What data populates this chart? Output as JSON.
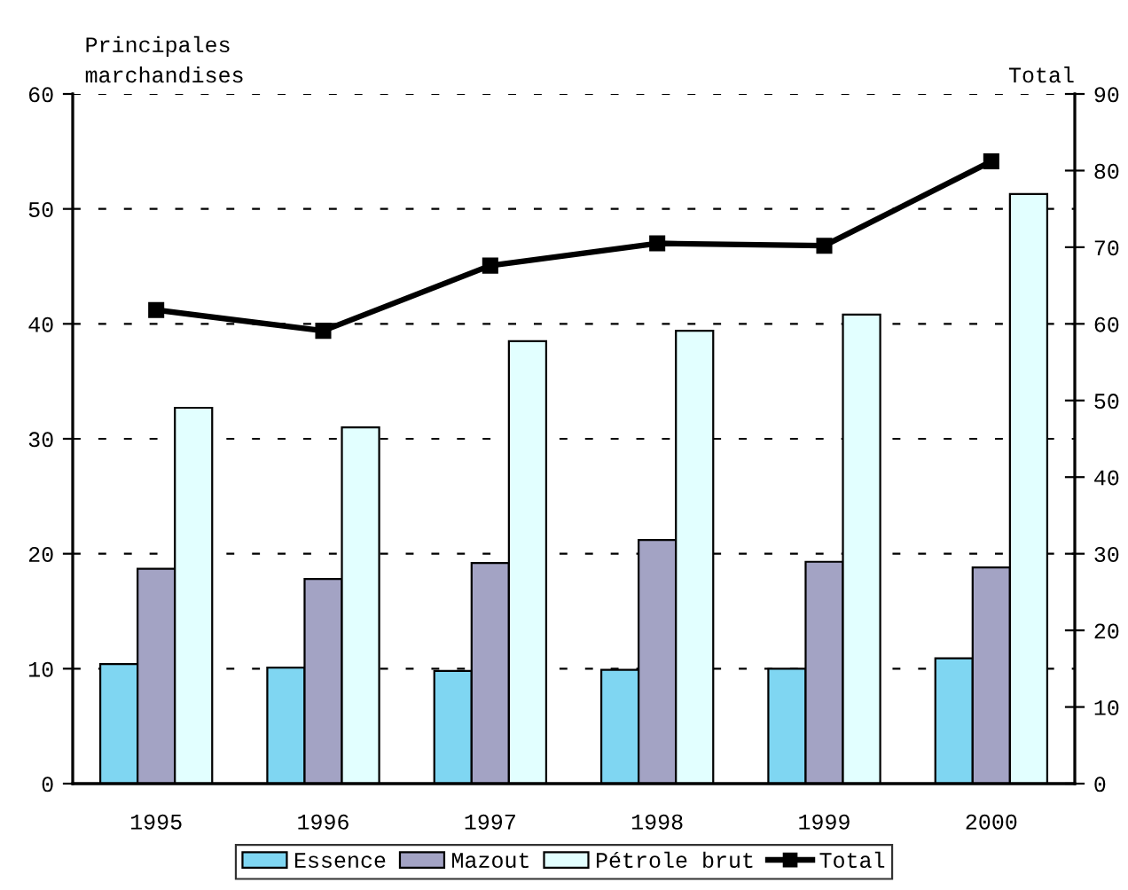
{
  "chart_data": {
    "type": "bar",
    "ylabel": "Principales\nmarchandises",
    "y2label": "Total",
    "categories": [
      "1995",
      "1996",
      "1997",
      "1998",
      "1999",
      "2000"
    ],
    "series": [
      {
        "name": "Essence",
        "color": "#7fd6f2",
        "values": [
          10.4,
          10.1,
          9.8,
          9.9,
          10.0,
          10.9
        ]
      },
      {
        "name": "Mazout",
        "color": "#a3a3c4",
        "values": [
          18.7,
          17.8,
          19.2,
          21.2,
          19.3,
          18.8
        ]
      },
      {
        "name": "Pétrole brut",
        "color": "#e2ffff",
        "values": [
          32.7,
          31.0,
          38.5,
          39.4,
          40.8,
          51.3
        ]
      },
      {
        "name": "Total",
        "type": "line",
        "axis": "y2",
        "color": "#000000",
        "marker": "square",
        "line_style": "solid",
        "values": [
          61.8,
          59.1,
          67.6,
          70.5,
          70.2,
          81.2
        ]
      }
    ],
    "ylim": [
      0,
      60
    ],
    "yticks": [
      0,
      10,
      20,
      30,
      40,
      50,
      60
    ],
    "y2lim": [
      0,
      90
    ],
    "y2ticks": [
      0,
      10,
      20,
      30,
      40,
      50,
      60,
      70,
      80,
      90
    ],
    "grid": "y",
    "legend": "bottom"
  }
}
